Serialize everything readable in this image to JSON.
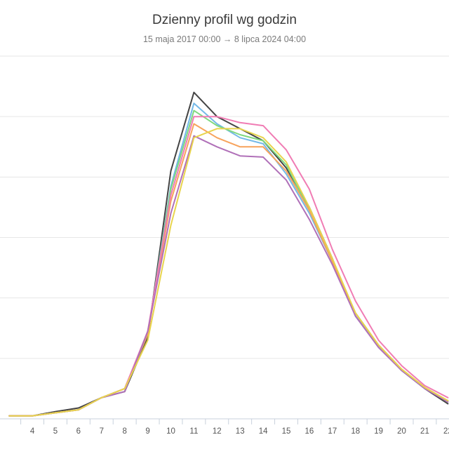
{
  "header": {
    "title": "Dzienny profil wg godzin",
    "subtitle": "15 maja 2017 00:00 → 8 lipca 2024 04:00"
  },
  "chart_data": {
    "type": "line",
    "title": "Dzienny profil wg godzin",
    "subtitle": "15 maja 2017 00:00 → 8 lipca 2024 04:00",
    "xlabel": "",
    "ylabel": "",
    "x": [
      3,
      4,
      5,
      6,
      7,
      8,
      9,
      10,
      11,
      12,
      13,
      14,
      15,
      16,
      17,
      18,
      19,
      20,
      21,
      22
    ],
    "ylim": [
      0,
      6
    ],
    "xlim": [
      2.6,
      22.05
    ],
    "grid": true,
    "series": [
      {
        "color": "#444444",
        "values": [
          0.05,
          0.05,
          0.12,
          0.18,
          0.35,
          0.45,
          1.35,
          4.1,
          5.4,
          5.0,
          4.8,
          4.6,
          4.15,
          3.5,
          2.65,
          1.7,
          1.2,
          0.8,
          0.5,
          0.25
        ]
      },
      {
        "color": "#74b9e8",
        "values": [
          0.05,
          0.05,
          0.1,
          0.15,
          0.35,
          0.5,
          1.4,
          3.85,
          5.22,
          4.88,
          4.65,
          4.55,
          4.05,
          3.4,
          2.6,
          1.7,
          1.2,
          0.8,
          0.5,
          0.3
        ]
      },
      {
        "color": "#7fd87f",
        "values": [
          0.05,
          0.05,
          0.1,
          0.15,
          0.35,
          0.5,
          1.4,
          3.8,
          5.1,
          4.85,
          4.7,
          4.6,
          4.2,
          3.45,
          2.6,
          1.75,
          1.22,
          0.82,
          0.52,
          0.3
        ]
      },
      {
        "color": "#f7a35c",
        "values": [
          0.05,
          0.05,
          0.1,
          0.15,
          0.35,
          0.5,
          1.4,
          3.6,
          4.88,
          4.65,
          4.5,
          4.5,
          4.1,
          3.45,
          2.6,
          1.75,
          1.22,
          0.82,
          0.52,
          0.3
        ]
      },
      {
        "color": "#f07cb4",
        "values": [
          0.05,
          0.05,
          0.1,
          0.15,
          0.35,
          0.5,
          1.45,
          3.7,
          5.0,
          5.0,
          4.9,
          4.85,
          4.45,
          3.8,
          2.8,
          1.95,
          1.3,
          0.88,
          0.55,
          0.35
        ]
      },
      {
        "color": "#b070b8",
        "values": [
          0.05,
          0.05,
          0.1,
          0.15,
          0.35,
          0.45,
          1.45,
          3.4,
          4.68,
          4.5,
          4.35,
          4.33,
          3.95,
          3.3,
          2.55,
          1.7,
          1.18,
          0.8,
          0.5,
          0.28
        ]
      },
      {
        "color": "#e8d44d",
        "values": [
          0.05,
          0.05,
          0.1,
          0.15,
          0.35,
          0.5,
          1.3,
          3.2,
          4.65,
          4.8,
          4.8,
          4.65,
          4.25,
          3.5,
          2.65,
          1.75,
          1.22,
          0.82,
          0.52,
          0.3
        ]
      }
    ]
  }
}
